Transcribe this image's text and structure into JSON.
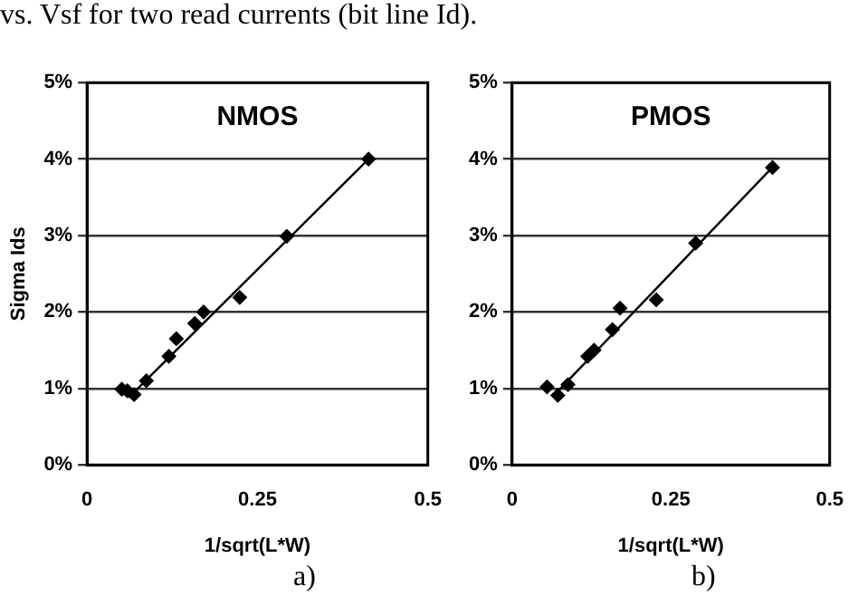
{
  "chart_data": [
    {
      "type": "scatter",
      "title": "NMOS",
      "xlabel": "1/sqrt(L*W)",
      "ylabel": "Sigma Ids",
      "annotations": [
        "vs. Vsf for two read currents (bit line Id).",
        "a)"
      ],
      "series": [
        {
          "type": "scatter",
          "color": "#000000",
          "marker": "diamond",
          "x": [
            0.051,
            0.059,
            0.069,
            0.087,
            0.12,
            0.131,
            0.158,
            0.171,
            0.224,
            0.293,
            0.413
          ],
          "values": [
            0.99,
            0.97,
            0.92,
            1.1,
            1.42,
            1.65,
            1.85,
            2.0,
            2.19,
            2.99,
            4.0
          ]
        },
        {
          "type": "line",
          "color": "#000000",
          "marker": "none",
          "x": [
            0.061,
            0.413
          ],
          "values": [
            0.88,
            4.0
          ]
        }
      ],
      "xlim": [
        0,
        0.5
      ],
      "xticks": [
        0,
        0.25,
        0.5
      ],
      "ylim": [
        0,
        5
      ],
      "yticks": [
        {
          "value": 0,
          "label": "0%"
        },
        {
          "value": 1,
          "label": "1%"
        },
        {
          "value": 2,
          "label": "2%"
        },
        {
          "value": 3,
          "label": "3%"
        },
        {
          "value": 4,
          "label": "4%"
        },
        {
          "value": 5,
          "label": "5%"
        }
      ],
      "grid": "y",
      "legend": false
    },
    {
      "type": "scatter",
      "title": "PMOS",
      "xlabel": "1/sqrt(L*W)",
      "annotations": [
        "b)"
      ],
      "series": [
        {
          "type": "scatter",
          "color": "#000000",
          "marker": "diamond",
          "x": [
            0.055,
            0.072,
            0.088,
            0.119,
            0.129,
            0.158,
            0.17,
            0.227,
            0.289,
            0.41
          ],
          "values": [
            1.02,
            0.91,
            1.05,
            1.42,
            1.5,
            1.77,
            2.05,
            2.16,
            2.9,
            3.89
          ]
        },
        {
          "type": "line",
          "color": "#000000",
          "marker": "none",
          "x": [
            0.067,
            0.412
          ],
          "values": [
            0.92,
            3.91
          ]
        }
      ],
      "xlim": [
        0,
        0.5
      ],
      "xticks": [
        0,
        0.25,
        0.5
      ],
      "ylim": [
        0,
        5
      ],
      "yticks": [
        {
          "value": 0,
          "label": "0%"
        },
        {
          "value": 1,
          "label": "1%"
        },
        {
          "value": 2,
          "label": "2%"
        },
        {
          "value": 3,
          "label": "3%"
        },
        {
          "value": 4,
          "label": "4%"
        },
        {
          "value": 5,
          "label": "5%"
        }
      ],
      "grid": "y",
      "legend": false
    }
  ]
}
